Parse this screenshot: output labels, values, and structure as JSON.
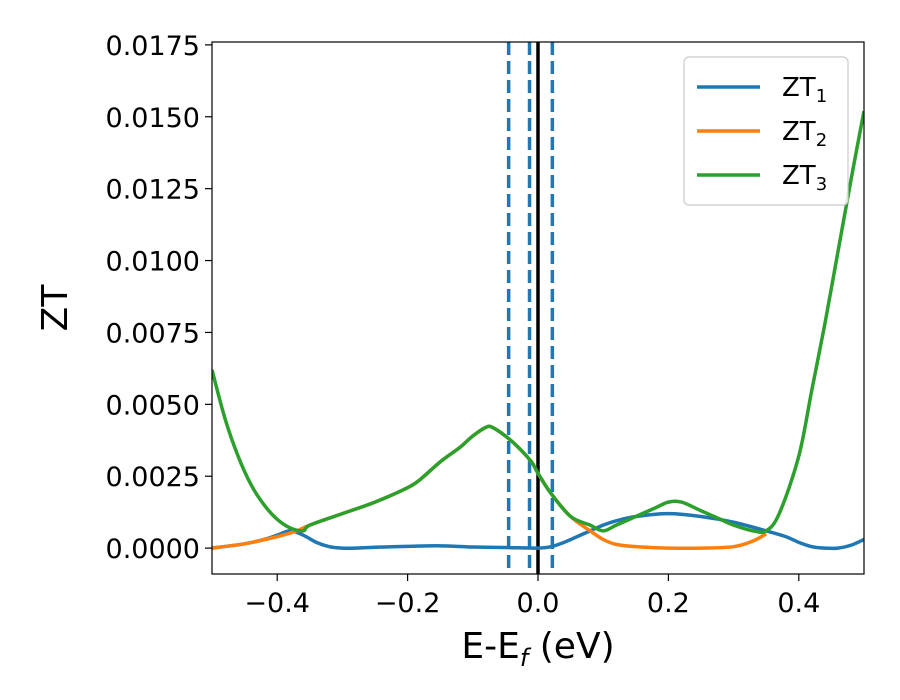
{
  "chart_data": {
    "type": "line",
    "xlabel": {
      "main": "E-E",
      "sub": "f",
      "rest": " (eV)"
    },
    "ylabel": "ZT",
    "xlim": [
      -0.5,
      0.5
    ],
    "ylim": [
      -0.0009,
      0.0176
    ],
    "x_ticks": [
      -0.4,
      -0.2,
      0.0,
      0.2,
      0.4
    ],
    "x_tick_labels": [
      "−0.4",
      "−0.2",
      "0.0",
      "0.2",
      "0.4"
    ],
    "y_ticks": [
      0.0,
      0.0025,
      0.005,
      0.0075,
      0.01,
      0.0125,
      0.015,
      0.0175
    ],
    "y_tick_labels": [
      "0.0000",
      "0.0025",
      "0.0050",
      "0.0075",
      "0.0100",
      "0.0125",
      "0.0150",
      "0.0175"
    ],
    "grid": false,
    "legend_position": "top-right",
    "vertical_lines": [
      {
        "x": -0.045,
        "color": "#1f77b4",
        "style": "dashed"
      },
      {
        "x": -0.013,
        "color": "#1f77b4",
        "style": "dashed"
      },
      {
        "x": 0.0,
        "color": "#000000",
        "style": "solid"
      },
      {
        "x": 0.022,
        "color": "#1f77b4",
        "style": "dashed"
      }
    ],
    "series": [
      {
        "name": "ZT",
        "subscript": "1",
        "color": "#1f77b4",
        "x": [
          -0.5,
          -0.45,
          -0.42,
          -0.4,
          -0.38,
          -0.36,
          -0.34,
          -0.32,
          -0.3,
          -0.28,
          -0.25,
          -0.2,
          -0.15,
          -0.1,
          -0.05,
          0.0,
          0.02,
          0.04,
          0.06,
          0.08,
          0.1,
          0.12,
          0.15,
          0.2,
          0.25,
          0.3,
          0.35,
          0.38,
          0.4,
          0.42,
          0.44,
          0.46,
          0.48,
          0.5
        ],
        "y": [
          0.0,
          0.00015,
          0.0003,
          0.00045,
          0.0006,
          0.00045,
          0.0002,
          5e-05,
          0.0,
          0.0,
          3e-05,
          6e-05,
          8e-05,
          4e-05,
          2e-05,
          0.0,
          5e-05,
          0.0002,
          0.0004,
          0.0006,
          0.0008,
          0.00095,
          0.0011,
          0.0012,
          0.0011,
          0.0009,
          0.0006,
          0.0004,
          0.0002,
          5e-05,
          0.0,
          0.0,
          0.0001,
          0.0003
        ]
      },
      {
        "name": "ZT",
        "subscript": "2",
        "color": "#ff7f0e",
        "x": [
          -0.5,
          -0.45,
          -0.4,
          -0.37,
          -0.35,
          -0.3,
          -0.25,
          -0.2,
          -0.18,
          -0.15,
          -0.12,
          -0.1,
          -0.08,
          -0.07,
          -0.05,
          -0.03,
          -0.01,
          0.0,
          0.02,
          0.05,
          0.08,
          0.1,
          0.12,
          0.15,
          0.2,
          0.25,
          0.3,
          0.33,
          0.35
        ],
        "y": [
          0.0,
          0.00015,
          0.0004,
          0.0006,
          0.0008,
          0.0012,
          0.0016,
          0.0021,
          0.0024,
          0.003,
          0.0035,
          0.0039,
          0.0042,
          0.0042,
          0.0039,
          0.0035,
          0.003,
          0.0026,
          0.0019,
          0.0011,
          0.0006,
          0.0003,
          0.00013,
          5e-05,
          0.0,
          0.0,
          5e-05,
          0.00025,
          0.0005
        ]
      },
      {
        "name": "ZT",
        "subscript": "3",
        "color": "#2ca02c",
        "x": [
          -0.5,
          -0.48,
          -0.46,
          -0.44,
          -0.42,
          -0.4,
          -0.38,
          -0.36,
          -0.35,
          -0.3,
          -0.25,
          -0.2,
          -0.18,
          -0.15,
          -0.12,
          -0.1,
          -0.08,
          -0.07,
          -0.05,
          -0.03,
          -0.01,
          0.0,
          0.02,
          0.05,
          0.08,
          0.1,
          0.12,
          0.15,
          0.18,
          0.2,
          0.22,
          0.25,
          0.28,
          0.3,
          0.33,
          0.35,
          0.37,
          0.4,
          0.42,
          0.44,
          0.46,
          0.48,
          0.5
        ],
        "y": [
          0.0062,
          0.0045,
          0.0032,
          0.0022,
          0.0015,
          0.001,
          0.0007,
          0.0006,
          0.0008,
          0.0012,
          0.0016,
          0.0021,
          0.0024,
          0.003,
          0.0035,
          0.0039,
          0.0042,
          0.0042,
          0.0039,
          0.0035,
          0.003,
          0.0026,
          0.0019,
          0.0011,
          0.0008,
          0.0006,
          0.0008,
          0.0011,
          0.0014,
          0.0016,
          0.0016,
          0.0013,
          0.001,
          0.0008,
          0.0006,
          0.0006,
          0.0012,
          0.0032,
          0.0055,
          0.0078,
          0.0103,
          0.0128,
          0.0152
        ]
      }
    ]
  }
}
